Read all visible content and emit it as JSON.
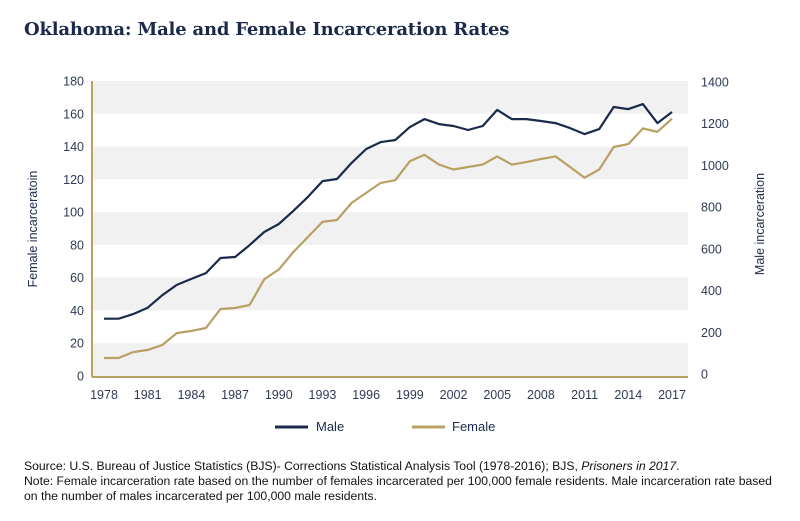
{
  "chart_data": {
    "type": "line",
    "title": "Oklahoma: Male and Female Incarceration Rates",
    "x": [
      1978,
      1979,
      1980,
      1981,
      1982,
      1983,
      1984,
      1985,
      1986,
      1987,
      1988,
      1989,
      1990,
      1991,
      1992,
      1993,
      1994,
      1995,
      1996,
      1997,
      1998,
      1999,
      2000,
      2001,
      2002,
      2003,
      2004,
      2005,
      2006,
      2007,
      2008,
      2009,
      2010,
      2011,
      2012,
      2013,
      2014,
      2015,
      2016,
      2017
    ],
    "x_tick_labels": [
      "1978",
      "1981",
      "1984",
      "1987",
      "1990",
      "1993",
      "1996",
      "1999",
      "2002",
      "2005",
      "2008",
      "2011",
      "2014",
      "2017"
    ],
    "series": [
      {
        "name": "Male",
        "axis": "right",
        "color": "#1b2a4a",
        "values": [
          265,
          265,
          287,
          318,
          378,
          427,
          456,
          484,
          556,
          561,
          618,
          681,
          719,
          782,
          849,
          925,
          935,
          1012,
          1079,
          1112,
          1122,
          1184,
          1222,
          1198,
          1189,
          1170,
          1189,
          1266,
          1222,
          1222,
          1213,
          1203,
          1179,
          1150,
          1174,
          1280,
          1270,
          1294,
          1203,
          1256
        ]
      },
      {
        "name": "Female",
        "axis": "left",
        "color": "#b9a063",
        "values": [
          11,
          11,
          14.6,
          15.9,
          18.9,
          26.2,
          27.5,
          29.3,
          40.9,
          41.5,
          43.3,
          59,
          65,
          75.6,
          84.8,
          94,
          95.2,
          105.6,
          111.7,
          117.8,
          119.5,
          131,
          135,
          129,
          126,
          127.5,
          129,
          134,
          129,
          130.5,
          132.4,
          134,
          127.5,
          121,
          126,
          139.7,
          141.5,
          151,
          149,
          157
        ]
      }
    ],
    "y_left": {
      "label": "Female incarceratoin",
      "range": [
        0,
        180
      ],
      "ticks": [
        "0",
        "20",
        "40",
        "60",
        "80",
        "100",
        "120",
        "140",
        "160",
        "180"
      ]
    },
    "y_right": {
      "label": "Male incarceration",
      "range": [
        0,
        1400
      ],
      "ticks": [
        "0",
        "200",
        "400",
        "600",
        "800",
        "1000",
        "1200",
        "1400"
      ]
    },
    "xlim": [
      1978,
      2017
    ],
    "grid": "alternating horizontal bands",
    "legend_position": "bottom-center",
    "legend": [
      "Male",
      "Female"
    ]
  },
  "colors": {
    "axis": "#b9a063",
    "band": "#f1f1f1",
    "male": "#1b2a4a",
    "female": "#b9a063"
  },
  "footer": {
    "source_prefix": "Source: U.S. Bureau of Justice Statistics (BJS)- Corrections Statistical Analysis Tool (1978-2016); BJS, ",
    "source_italic": "Prisoners in 2017",
    "source_suffix": ".",
    "note": "Note: Female incarceration rate based on the number of females incarcerated per 100,000 female residents. Male incarceration rate based on the number of males incarcerated per 100,000 male residents."
  }
}
